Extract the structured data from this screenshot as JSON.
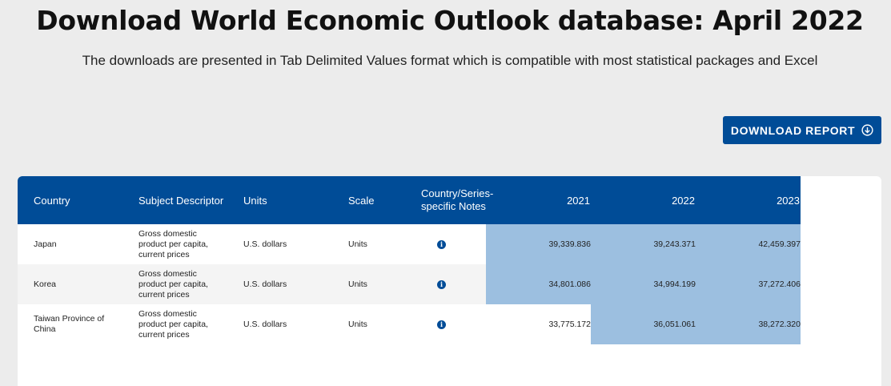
{
  "header": {
    "title": "Download World Economic Outlook database: April 2022",
    "subtitle": "The downloads are presented in Tab Delimited Values format which is compatible with most statistical packages and Excel"
  },
  "download_button": {
    "label": "DOWNLOAD REPORT",
    "icon": "download-circle-icon"
  },
  "colors": {
    "brand": "#004c97",
    "highlight": "#9cbfe0",
    "background": "#ececec"
  },
  "table": {
    "columns": {
      "country": "Country",
      "subject": "Subject Descriptor",
      "units": "Units",
      "scale": "Scale",
      "notes": "Country/Series-specific Notes",
      "y2021": "2021",
      "y2022": "2022",
      "y2023": "2023"
    },
    "rows": [
      {
        "country": "Japan",
        "subject": "Gross domestic product per capita, current prices",
        "units": "U.S. dollars",
        "scale": "Units",
        "notes_icon": "info-icon",
        "y2021": "39,339.836",
        "y2022": "39,243.371",
        "y2023": "42,459.397"
      },
      {
        "country": "Korea",
        "subject": "Gross domestic product per capita, current prices",
        "units": "U.S. dollars",
        "scale": "Units",
        "notes_icon": "info-icon",
        "y2021": "34,801.086",
        "y2022": "34,994.199",
        "y2023": "37,272.406"
      },
      {
        "country": "Taiwan Province of China",
        "subject": "Gross domestic product per capita, current prices",
        "units": "U.S. dollars",
        "scale": "Units",
        "notes_icon": "info-icon",
        "y2021": "33,775.172",
        "y2022": "36,051.061",
        "y2023": "38,272.320"
      }
    ]
  }
}
